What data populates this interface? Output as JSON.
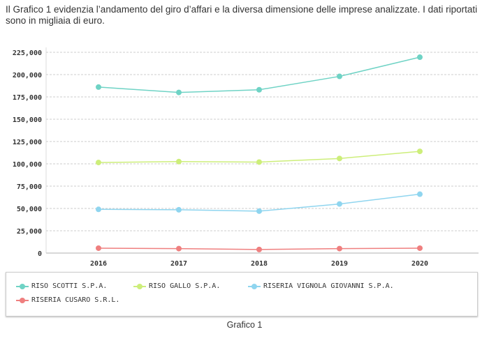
{
  "intro": "Il Grafico 1 evidenzia l’andamento del giro d’affari e la diversa dimensione delle imprese analizzate. I dati riportati sono in migliaia di euro.",
  "caption": "Grafico 1",
  "chart_data": {
    "type": "line",
    "title": "",
    "xlabel": "",
    "ylabel": "",
    "categories": [
      "2016",
      "2017",
      "2018",
      "2019",
      "2020"
    ],
    "ylim": [
      0,
      225000
    ],
    "yticks": [
      0,
      25000,
      50000,
      75000,
      100000,
      125000,
      150000,
      175000,
      200000,
      225000
    ],
    "ytick_labels": [
      "0",
      "25,000",
      "50,000",
      "75,000",
      "100,000",
      "125,000",
      "150,000",
      "175,000",
      "200,000",
      "225,000"
    ],
    "grid": true,
    "legend_placement": "bottom",
    "series": [
      {
        "name": "RISO SCOTTI S.P.A.",
        "color": "#6fd3c5",
        "values": [
          186000,
          180000,
          183000,
          198000,
          219500
        ]
      },
      {
        "name": "RISO GALLO S.P.A.",
        "color": "#cdee7a",
        "values": [
          101500,
          102500,
          102000,
          106000,
          114000
        ]
      },
      {
        "name": "RISERIA VIGNOLA GIOVANNI S.P.A.",
        "color": "#8fd5ef",
        "values": [
          49000,
          48500,
          47000,
          55000,
          66000
        ]
      },
      {
        "name": "RISERIA CUSARO S.R.L.",
        "color": "#ef7f7f",
        "values": [
          5500,
          5000,
          4000,
          5000,
          5500
        ]
      }
    ]
  }
}
